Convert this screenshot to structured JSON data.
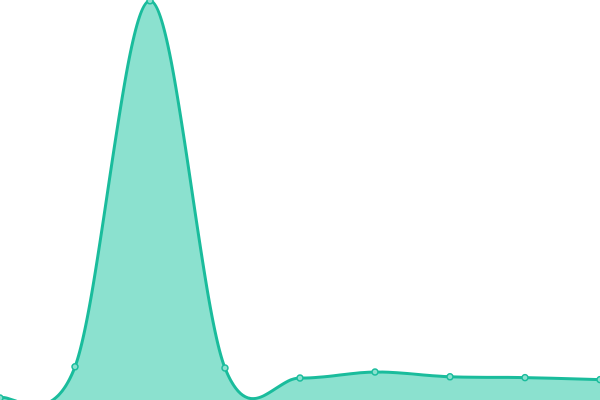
{
  "chart_data": {
    "type": "area",
    "x": [
      0,
      1,
      2,
      3,
      4,
      5,
      6,
      7,
      8
    ],
    "series": [
      {
        "values": [
          0.5,
          8.3,
          99.8,
          8.0,
          5.5,
          7.0,
          5.8,
          5.6,
          5.1
        ]
      }
    ],
    "ylim": [
      0,
      100
    ],
    "xlim": [
      0,
      8
    ],
    "grid": false,
    "axes_visible": false,
    "line_color": "#1abc9c",
    "fill_color": "#8be1cf",
    "point_fill": "#8be1cf",
    "smooth": true
  }
}
